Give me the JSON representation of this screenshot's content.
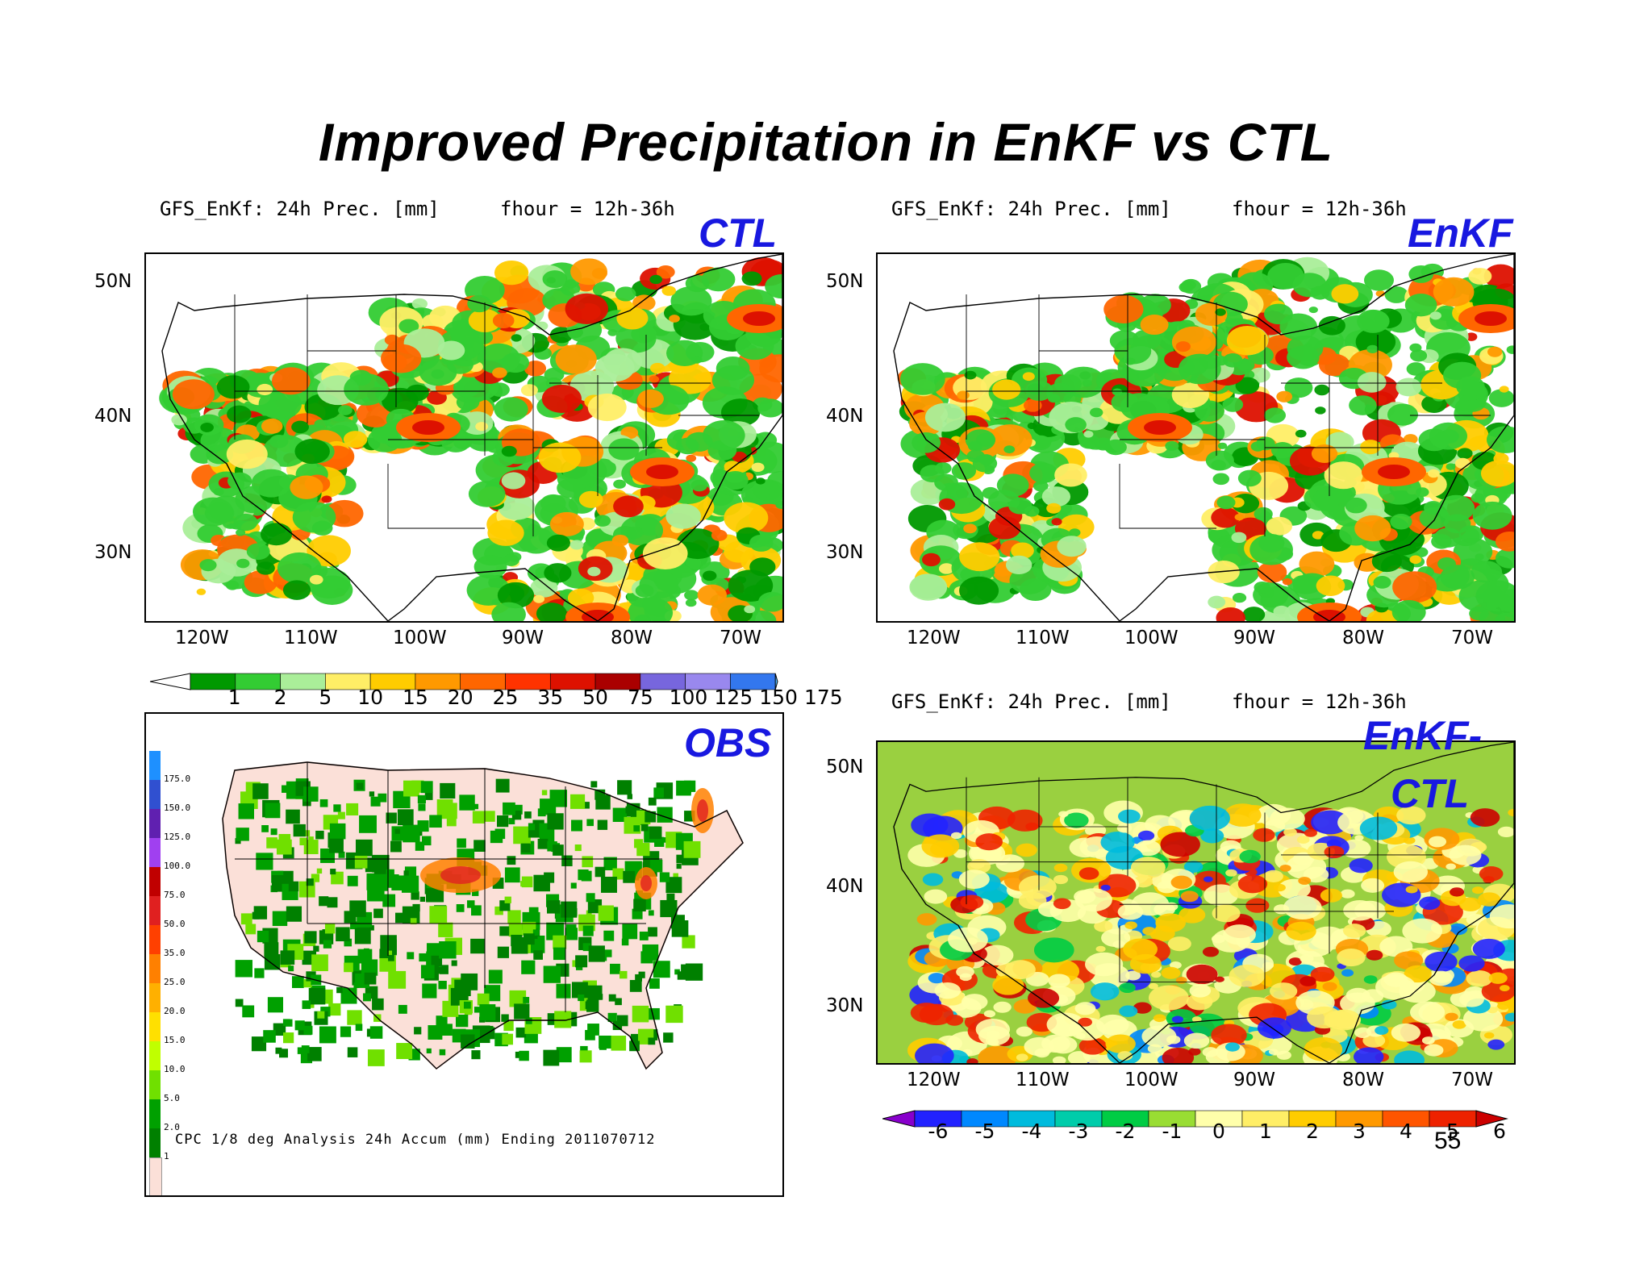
{
  "slide": {
    "title": "Improved Precipitation in EnKF vs CTL",
    "page_number": "55"
  },
  "panels": {
    "ctl": {
      "header_left": "GFS_EnKf: 24h Prec. [mm]",
      "header_right": "fhour = 12h-36h",
      "label": "CTL"
    },
    "enkf": {
      "header_left": "GFS_EnKf: 24h Prec. [mm]",
      "header_right": "fhour = 12h-36h",
      "label": "EnKF"
    },
    "obs": {
      "label": "OBS",
      "caption": "CPC 1/8 deg Analysis 24h Accum (mm) Ending 2011070712",
      "legend_values": [
        "175.0",
        "150.0",
        "125.0",
        "100.0",
        "75.0",
        "50.0",
        "35.0",
        "25.0",
        "20.0",
        "15.0",
        "10.0",
        "5.0",
        "2.0",
        "1"
      ],
      "legend_colors": [
        "#1e90ff",
        "#3050d0",
        "#6020b0",
        "#a040f0",
        "#c00000",
        "#e02020",
        "#ff4000",
        "#ff8000",
        "#ffb000",
        "#ffe000",
        "#c0ff00",
        "#70e000",
        "#00a000",
        "#008000"
      ]
    },
    "diff": {
      "header_left": "GFS_EnKf: 24h Prec. [mm]",
      "header_right": "fhour = 12h-36h",
      "label_line1": "EnKF-",
      "label_line2": "CTL"
    }
  },
  "axes": {
    "lat_labels": [
      "50N",
      "40N",
      "30N"
    ],
    "lon_labels": [
      "120W",
      "110W",
      "100W",
      "90W",
      "80W",
      "70W"
    ]
  },
  "precip_colorbar": {
    "labels": [
      "1",
      "2",
      "5",
      "10",
      "15",
      "20",
      "25",
      "35",
      "50",
      "75",
      "100",
      "125",
      "150",
      "175"
    ],
    "colors": [
      "#ffffff",
      "#009900",
      "#33cc33",
      "#aaee99",
      "#ffee66",
      "#ffcc00",
      "#ff9900",
      "#ff6600",
      "#ff3300",
      "#dd1100",
      "#aa0000",
      "#7766dd",
      "#9988ee",
      "#3377ee",
      "#55bbff"
    ]
  },
  "diff_colorbar": {
    "labels": [
      "-6",
      "-5",
      "-4",
      "-3",
      "-2",
      "-1",
      "0",
      "1",
      "2",
      "3",
      "4",
      "5",
      "6"
    ],
    "colors": [
      "#8800cc",
      "#2222ff",
      "#0088ff",
      "#00bbdd",
      "#00ccaa",
      "#00cc44",
      "#99dd33",
      "#ffffaa",
      "#ffee66",
      "#ffcc00",
      "#ff9900",
      "#ff5500",
      "#ee2200",
      "#cc0000"
    ]
  }
}
